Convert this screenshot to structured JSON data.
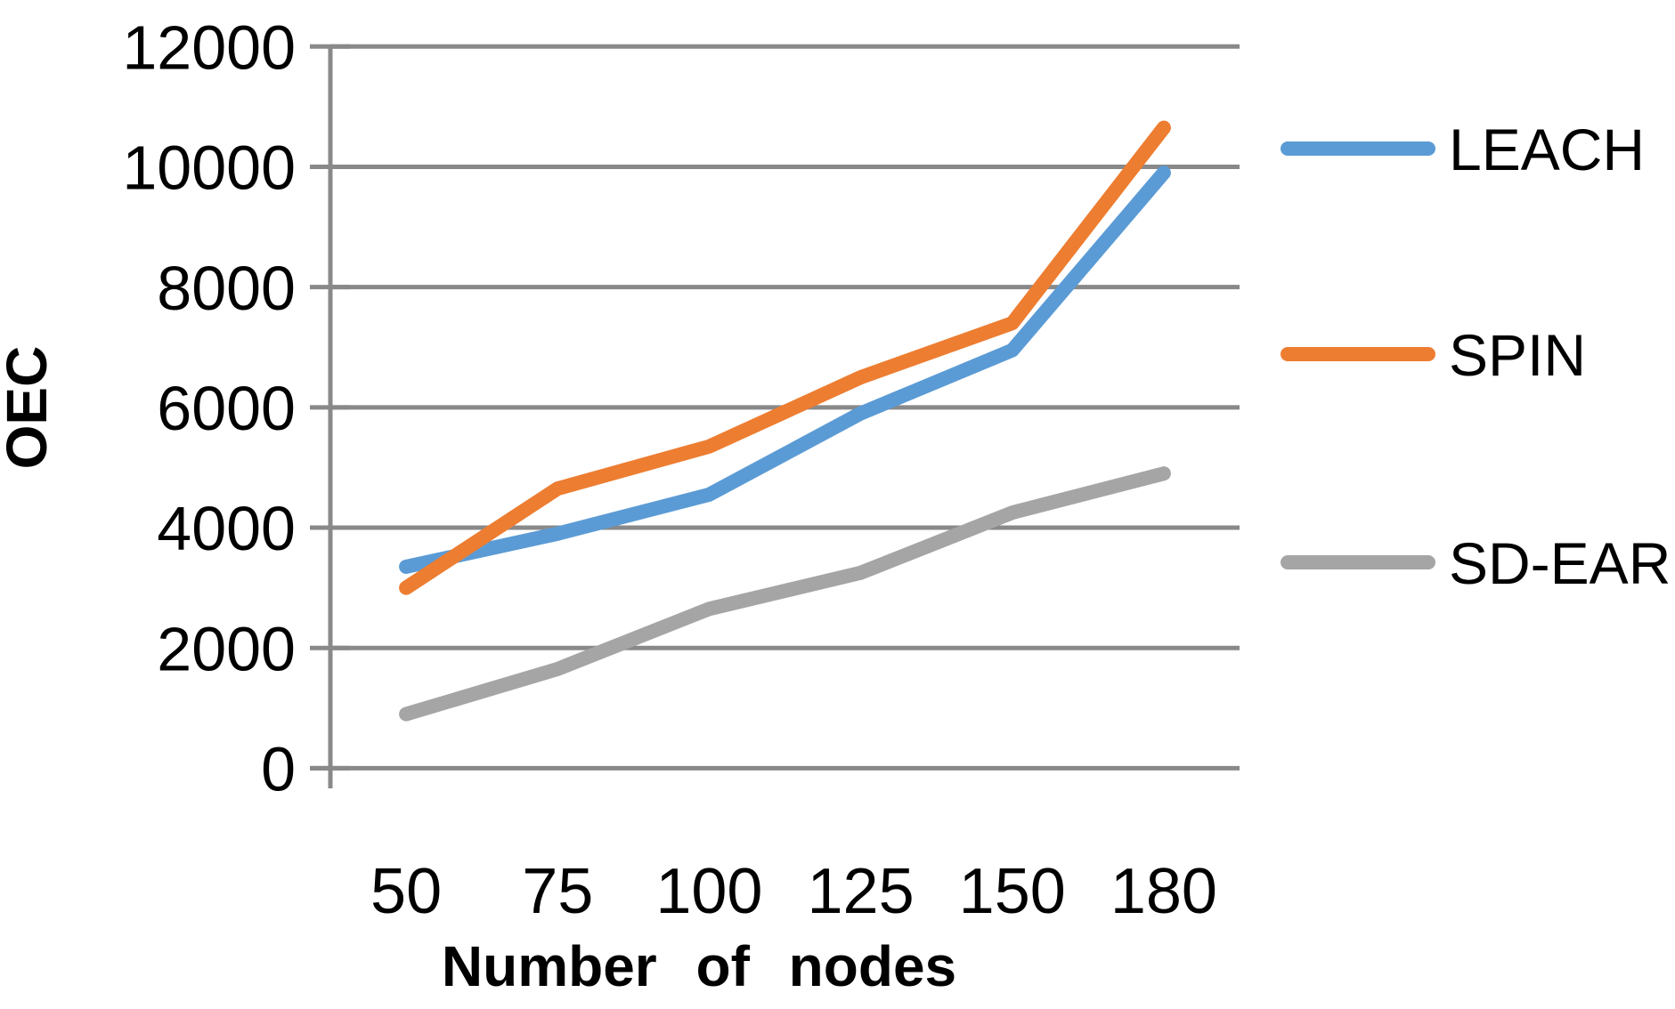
{
  "chart_data": {
    "type": "line",
    "title": "",
    "xlabel": "Number of nodes",
    "ylabel": "OEC",
    "categories": [
      50,
      75,
      100,
      125,
      150,
      180
    ],
    "x_tick_labels": [
      "50",
      "75",
      "100",
      "125",
      "150",
      "180"
    ],
    "ylim": [
      0,
      12000
    ],
    "ytick_step": 2000,
    "ytick_labels": [
      "0",
      "2000",
      "4000",
      "6000",
      "8000",
      "10000",
      "12000"
    ],
    "grid": "horizontal-only",
    "legend_position": "right",
    "series": [
      {
        "name": "LEACH",
        "color": "#5B9BD5",
        "values": [
          3350,
          3900,
          4550,
          5900,
          6950,
          9900
        ]
      },
      {
        "name": "SPIN",
        "color": "#ED7D31",
        "values": [
          3000,
          4650,
          5350,
          6500,
          7400,
          10650
        ]
      },
      {
        "name": "SD-EAR",
        "color": "#A5A5A5",
        "values": [
          900,
          1650,
          2650,
          3250,
          4250,
          4900
        ]
      }
    ],
    "colors": {
      "axis": "#898989",
      "gridline": "#898989",
      "text": "#000000",
      "background": "#FFFFFF"
    }
  }
}
